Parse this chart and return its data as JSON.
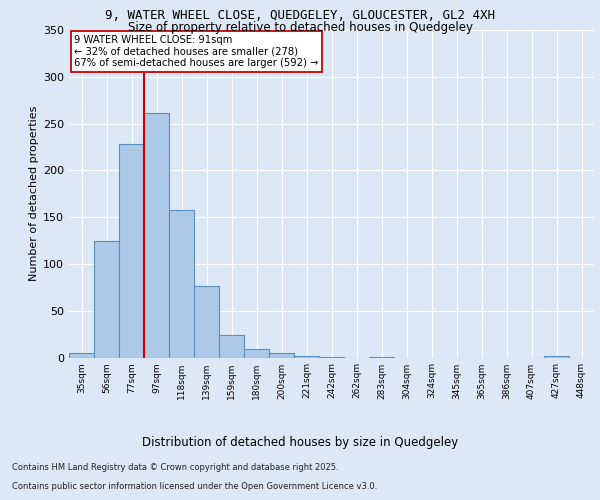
{
  "title_line1": "9, WATER WHEEL CLOSE, QUEDGELEY, GLOUCESTER, GL2 4XH",
  "title_line2": "Size of property relative to detached houses in Quedgeley",
  "xlabel": "Distribution of detached houses by size in Quedgeley",
  "ylabel": "Number of detached properties",
  "categories": [
    "35sqm",
    "56sqm",
    "77sqm",
    "97sqm",
    "118sqm",
    "139sqm",
    "159sqm",
    "180sqm",
    "200sqm",
    "221sqm",
    "242sqm",
    "262sqm",
    "283sqm",
    "304sqm",
    "324sqm",
    "345sqm",
    "365sqm",
    "386sqm",
    "407sqm",
    "427sqm",
    "448sqm"
  ],
  "values": [
    5,
    124,
    228,
    261,
    158,
    76,
    24,
    9,
    5,
    2,
    1,
    0,
    1,
    0,
    0,
    0,
    0,
    0,
    0,
    2,
    0
  ],
  "bar_color": "#adc9e8",
  "bar_edge_color": "#5a8fc0",
  "bar_edge_width": 0.8,
  "vline_color": "#cc0000",
  "vline_x_idx": 2.5,
  "annotation_text": "9 WATER WHEEL CLOSE: 91sqm\n← 32% of detached houses are smaller (278)\n67% of semi-detached houses are larger (592) →",
  "annotation_box_color": "#ffffff",
  "annotation_box_edge": "#cc0000",
  "bg_color": "#dce8f5",
  "plot_bg_color": "#dce8f5",
  "grid_color": "#ffffff",
  "ylim": [
    0,
    350
  ],
  "yticks": [
    0,
    50,
    100,
    150,
    200,
    250,
    300,
    350
  ],
  "footer_line1": "Contains HM Land Registry data © Crown copyright and database right 2025.",
  "footer_line2": "Contains public sector information licensed under the Open Government Licence v3.0."
}
